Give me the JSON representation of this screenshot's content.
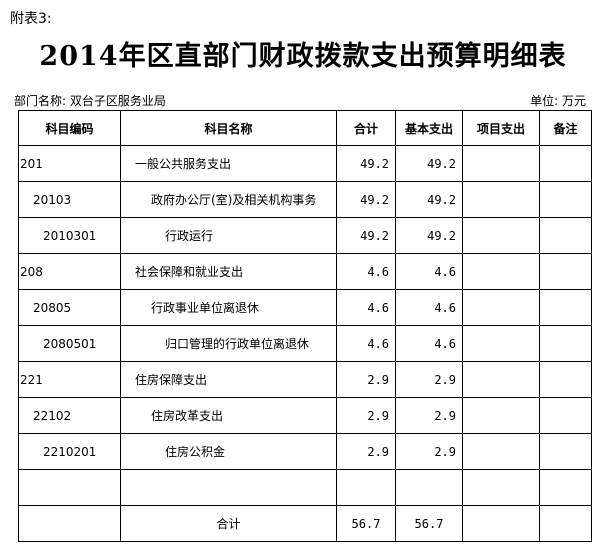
{
  "header": {
    "attachment_label": "附表3:",
    "title": "2014年区直部门财政拨款支出预算明细表",
    "department": "部门名称: 双台子区服务业局",
    "unit": "单位: 万元"
  },
  "table": {
    "columns": [
      "科目编码",
      "科目名称",
      "合计",
      "基本支出",
      "项目支出",
      "备注"
    ],
    "rows": [
      {
        "code": "201",
        "name": "一般公共服务支出",
        "total": "49.2",
        "basic": "49.2",
        "project": "",
        "note": "",
        "level": 1
      },
      {
        "code": "20103",
        "name": "政府办公厅(室)及相关机构事务",
        "total": "49.2",
        "basic": "49.2",
        "project": "",
        "note": "",
        "level": 2
      },
      {
        "code": "2010301",
        "name": "行政运行",
        "total": "49.2",
        "basic": "49.2",
        "project": "",
        "note": "",
        "level": 3
      },
      {
        "code": "208",
        "name": "社会保障和就业支出",
        "total": "4.6",
        "basic": "4.6",
        "project": "",
        "note": "",
        "level": 1
      },
      {
        "code": "20805",
        "name": "行政事业单位离退休",
        "total": "4.6",
        "basic": "4.6",
        "project": "",
        "note": "",
        "level": 2
      },
      {
        "code": "2080501",
        "name": "归口管理的行政单位离退休",
        "total": "4.6",
        "basic": "4.6",
        "project": "",
        "note": "",
        "level": 3
      },
      {
        "code": "221",
        "name": "住房保障支出",
        "total": "2.9",
        "basic": "2.9",
        "project": "",
        "note": "",
        "level": 1
      },
      {
        "code": "22102",
        "name": "住房改革支出",
        "total": "2.9",
        "basic": "2.9",
        "project": "",
        "note": "",
        "level": 2
      },
      {
        "code": "2210201",
        "name": "住房公积金",
        "total": "2.9",
        "basic": "2.9",
        "project": "",
        "note": "",
        "level": 3
      },
      {
        "code": "",
        "name": "",
        "total": "",
        "basic": "",
        "project": "",
        "note": "",
        "level": 1
      }
    ],
    "footer": {
      "label": "合计",
      "total": "56.7",
      "basic": "56.7",
      "project": "",
      "note": ""
    }
  }
}
